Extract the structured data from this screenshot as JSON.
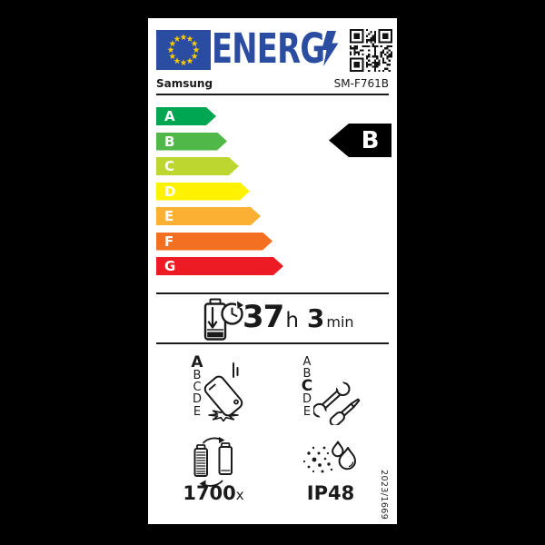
{
  "label": {
    "logo_text": "ENERG",
    "brand": "Samsung",
    "model": "SM-F761B",
    "regulation": "2023/1669",
    "colors": {
      "eu_blue": "#2a4da1",
      "star_yellow": "#ffcc00",
      "ink": "#1a1a1a",
      "rating_arrow_bg": "#000000",
      "label_bg": "#ffffff",
      "page_bg": "#000000"
    },
    "energy_scale": {
      "rating": "B",
      "classes": [
        {
          "label": "A",
          "color": "#00a651"
        },
        {
          "label": "B",
          "color": "#50b848"
        },
        {
          "label": "C",
          "color": "#bed630"
        },
        {
          "label": "D",
          "color": "#fff200"
        },
        {
          "label": "E",
          "color": "#fbb034"
        },
        {
          "label": "F",
          "color": "#f36f21"
        },
        {
          "label": "G",
          "color": "#ed1c24"
        }
      ]
    },
    "battery_life": {
      "hours": "37",
      "hours_unit": "h",
      "minutes": "3",
      "minutes_unit": "min",
      "icon": "battery-discharge-clock-icon"
    },
    "drop_resistance": {
      "rating": "A",
      "scale": [
        "A",
        "B",
        "C",
        "D",
        "E"
      ],
      "icon": "phone-drop-icon"
    },
    "repairability": {
      "rating": "C",
      "scale": [
        "A",
        "B",
        "C",
        "D",
        "E"
      ],
      "icon": "tools-icon"
    },
    "battery_endurance": {
      "cycles": "1700",
      "unit": "x",
      "icon": "battery-cycle-icon"
    },
    "ingress_protection": {
      "rating": "IP48",
      "icon": "dust-water-icon"
    },
    "header_icons": [
      "eu-flag-icon",
      "lightning-bolt-icon",
      "qr-code"
    ]
  }
}
